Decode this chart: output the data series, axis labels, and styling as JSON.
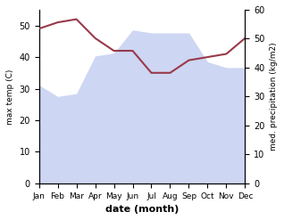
{
  "months": [
    "Jan",
    "Feb",
    "Mar",
    "Apr",
    "May",
    "Jun",
    "Jul",
    "Aug",
    "Sep",
    "Oct",
    "Nov",
    "Dec"
  ],
  "temp_celsius": [
    49,
    51,
    52,
    46,
    42,
    42,
    35,
    35,
    39,
    40,
    41,
    46
  ],
  "precipitation": [
    34,
    30,
    31,
    44,
    45,
    53,
    52,
    52,
    52,
    42,
    40,
    40
  ],
  "temp_color": "#99394a",
  "fill_color": "#c5cff0",
  "fill_alpha": 0.85,
  "temp_ylim": [
    0,
    55
  ],
  "precip_ylim": [
    0,
    60
  ],
  "temp_ylabel": "max temp (C)",
  "precip_ylabel": "med. precipitation (kg/m2)",
  "xlabel": "date (month)",
  "temp_yticks": [
    0,
    10,
    20,
    30,
    40,
    50
  ],
  "precip_yticks": [
    0,
    10,
    20,
    30,
    40,
    50,
    60
  ]
}
